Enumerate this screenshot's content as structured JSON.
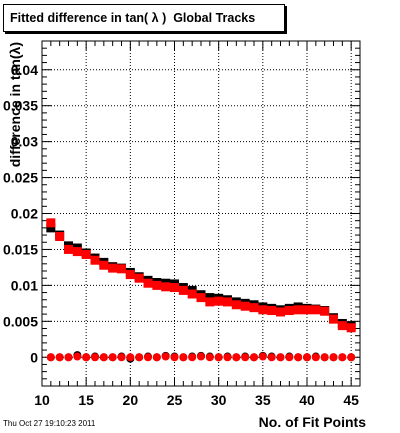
{
  "chart_data": {
    "type": "scatter",
    "title": "Fitted difference in tan( λ )  Global Tracks",
    "xlabel": "No. of Fit Points",
    "ylabel": "difference in tan(λ)",
    "xlim": [
      10,
      46
    ],
    "ylim": [
      -0.004,
      0.044
    ],
    "x_ticks": [
      10,
      15,
      20,
      25,
      30,
      35,
      40,
      45
    ],
    "y_ticks": [
      0,
      0.005,
      0.01,
      0.015,
      0.02,
      0.025,
      0.03,
      0.035,
      0.04
    ],
    "y_tick_labels": [
      "0",
      "0.005",
      "0.01",
      "0.015",
      "0.02",
      "0.025",
      "0.03",
      "0.035",
      "0.04"
    ],
    "grid": true,
    "series": [
      {
        "color": "#000000",
        "marker": "square",
        "x": [
          11,
          12,
          13,
          14,
          15,
          16,
          17,
          18,
          19,
          20,
          21,
          22,
          23,
          24,
          25,
          26,
          27,
          28,
          29,
          30,
          31,
          32,
          33,
          34,
          35,
          36,
          37,
          38,
          39,
          40,
          41,
          42,
          43,
          44,
          45
        ],
        "y": [
          0.018,
          0.017,
          0.0155,
          0.0152,
          0.0145,
          0.0138,
          0.0132,
          0.0126,
          0.0124,
          0.0118,
          0.0112,
          0.0107,
          0.0104,
          0.0103,
          0.0102,
          0.0097,
          0.0093,
          0.0087,
          0.0083,
          0.0082,
          0.008,
          0.0077,
          0.0075,
          0.0073,
          0.007,
          0.0068,
          0.0066,
          0.0068,
          0.007,
          0.0068,
          0.0067,
          0.0065,
          0.0055,
          0.0047,
          0.0044
        ]
      },
      {
        "color": "#ff0000",
        "marker": "square",
        "x": [
          11,
          12,
          13,
          14,
          15,
          16,
          17,
          18,
          19,
          20,
          21,
          22,
          23,
          24,
          25,
          26,
          27,
          28,
          29,
          30,
          31,
          32,
          33,
          34,
          35,
          36,
          37,
          38,
          39,
          40,
          41,
          42,
          43,
          44,
          45
        ],
        "y": [
          0.0187,
          0.0168,
          0.015,
          0.0147,
          0.0143,
          0.0135,
          0.0128,
          0.0124,
          0.0123,
          0.0115,
          0.011,
          0.0103,
          0.01,
          0.0098,
          0.0097,
          0.0093,
          0.0088,
          0.0083,
          0.0077,
          0.0078,
          0.0077,
          0.0073,
          0.0071,
          0.0069,
          0.0066,
          0.0065,
          0.0063,
          0.0065,
          0.0066,
          0.0066,
          0.0066,
          0.0064,
          0.0053,
          0.0044,
          0.0041
        ]
      },
      {
        "color": "#000000",
        "marker": "circle",
        "x": [
          11,
          12,
          13,
          14,
          15,
          16,
          17,
          18,
          19,
          20,
          21,
          22,
          23,
          24,
          25,
          26,
          27,
          28,
          29,
          30,
          31,
          32,
          33,
          34,
          35,
          36,
          37,
          38,
          39,
          40,
          41,
          42,
          43,
          44,
          45
        ],
        "y": [
          0,
          0,
          0,
          0.0003,
          0,
          0.0001,
          0,
          0,
          0.0001,
          -0.0002,
          0,
          0.0001,
          0,
          0.0002,
          0.0001,
          0,
          0.0001,
          0.0002,
          0.0001,
          0,
          0.0001,
          0,
          0.0001,
          0,
          0.0002,
          0.0001,
          0,
          0.0001,
          0,
          0,
          0.0001,
          0,
          0,
          0,
          0
        ]
      },
      {
        "color": "#ff0000",
        "marker": "circle",
        "x": [
          11,
          12,
          13,
          14,
          15,
          16,
          17,
          18,
          19,
          20,
          21,
          22,
          23,
          24,
          25,
          26,
          27,
          28,
          29,
          30,
          31,
          32,
          33,
          34,
          35,
          36,
          37,
          38,
          39,
          40,
          41,
          42,
          43,
          44,
          45
        ],
        "y": [
          0,
          0,
          0,
          0.0001,
          0,
          0,
          0,
          0,
          0,
          0,
          0,
          0,
          0,
          0.0001,
          0,
          0,
          0,
          0.0001,
          0,
          0,
          0,
          0,
          0,
          0,
          0.0001,
          0,
          0,
          0,
          0,
          0,
          0,
          0,
          0,
          0,
          0
        ]
      }
    ]
  },
  "footer": {
    "timestamp": "Thu Oct 27 19:10:23 2011"
  }
}
